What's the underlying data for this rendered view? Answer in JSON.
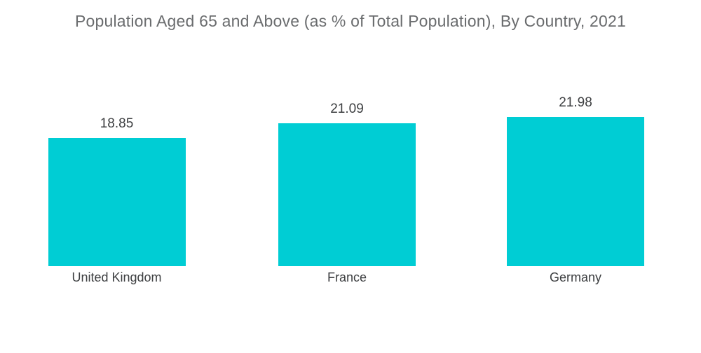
{
  "chart_data": {
    "type": "bar",
    "title": "Population Aged 65 and Above (as % of Total Population), By Country, 2021",
    "categories": [
      "United Kingdom",
      "France",
      "Germany"
    ],
    "values": [
      18.85,
      21.09,
      21.98
    ],
    "value_labels": [
      "18.85",
      "21.09",
      "21.98"
    ],
    "xlabel": "",
    "ylabel": "",
    "ylim": [
      0,
      22
    ],
    "grid": false,
    "legend": false,
    "axes_visible": false,
    "bar_color": "#00CDD4",
    "title_color": "#6A6C6E",
    "label_color": "#3D3F41",
    "background_color": "#FFFFFF"
  }
}
